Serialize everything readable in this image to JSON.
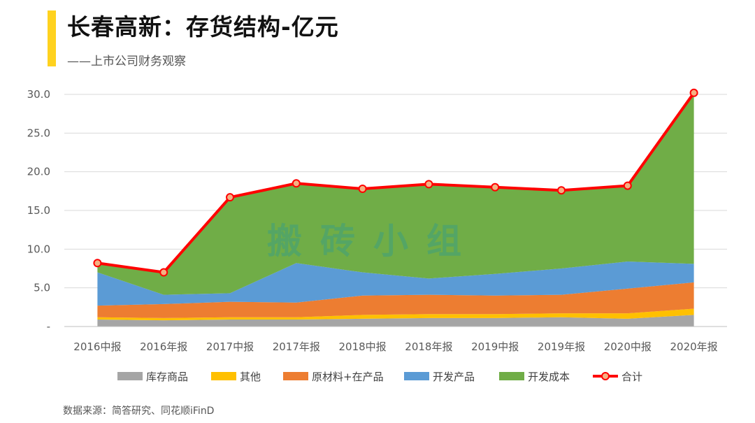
{
  "header": {
    "title": "长春高新：存货结构-亿元",
    "subtitle": "——上市公司财务观察"
  },
  "source": "数据来源：简答研究、同花顺iFinD",
  "watermark": "搬砖小组",
  "colors": {
    "accent": "#ffd21f",
    "库存商品": "#a5a5a5",
    "其他": "#ffc000",
    "原材料+在产品": "#ed7d31",
    "开发产品": "#5b9bd5",
    "开发成本": "#70ad47",
    "合计": "#ff0000"
  },
  "chart_data": {
    "type": "area",
    "stacked": true,
    "categories": [
      "2016中报",
      "2016年报",
      "2017中报",
      "2017年报",
      "2018中报",
      "2018年报",
      "2019中报",
      "2019年报",
      "2020中报",
      "2020年报"
    ],
    "ylim": [
      0,
      31
    ],
    "yticks": [
      "",
      "5.0",
      "10.0",
      "15.0",
      "20.0",
      "25.0",
      "30.0"
    ],
    "grid": true,
    "legend": "bottom",
    "series": [
      {
        "name": "库存商品",
        "values": [
          0.9,
          0.8,
          0.9,
          0.9,
          1.0,
          1.1,
          1.1,
          1.2,
          1.0,
          1.5
        ]
      },
      {
        "name": "其他",
        "values": [
          0.3,
          0.3,
          0.3,
          0.3,
          0.5,
          0.5,
          0.5,
          0.5,
          0.7,
          0.8
        ]
      },
      {
        "name": "原材料+在产品",
        "values": [
          1.5,
          1.8,
          2.0,
          1.9,
          2.5,
          2.5,
          2.4,
          2.4,
          3.2,
          3.4
        ]
      },
      {
        "name": "开发产品",
        "values": [
          4.3,
          1.2,
          1.1,
          5.1,
          3.0,
          2.1,
          2.8,
          3.4,
          3.5,
          2.4
        ]
      },
      {
        "name": "开发成本",
        "values": [
          1.2,
          2.9,
          12.4,
          10.3,
          10.8,
          12.2,
          11.2,
          10.1,
          9.8,
          22.1
        ]
      }
    ],
    "total": {
      "name": "合计",
      "values": [
        8.2,
        7.0,
        16.7,
        18.5,
        17.8,
        18.4,
        18.0,
        17.6,
        18.2,
        30.2
      ]
    }
  }
}
